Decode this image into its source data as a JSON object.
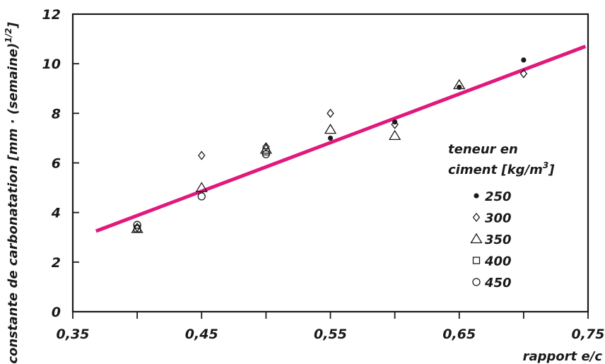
{
  "chart_data": {
    "type": "scatter",
    "xlabel": "rapport e/c",
    "ylabel_main": "constante de carbonatation [mm · (semaine)",
    "ylabel_sup": "1/2",
    "ylabel_end": "]",
    "xlim": [
      0.35,
      0.75
    ],
    "ylim": [
      0,
      12
    ],
    "x_ticks": [
      {
        "value": 0.35,
        "label": "0,35"
      },
      {
        "value": 0.45,
        "label": "0,45"
      },
      {
        "value": 0.55,
        "label": "0,55"
      },
      {
        "value": 0.65,
        "label": "0,65"
      },
      {
        "value": 0.75,
        "label": "0,75"
      }
    ],
    "x_minor_ticks": [
      0.4,
      0.5,
      0.6,
      0.7
    ],
    "y_ticks": [
      {
        "value": 0,
        "label": "0"
      },
      {
        "value": 2,
        "label": "2"
      },
      {
        "value": 4,
        "label": "4"
      },
      {
        "value": 6,
        "label": "6"
      },
      {
        "value": 8,
        "label": "8"
      },
      {
        "value": 10,
        "label": "10"
      },
      {
        "value": 12,
        "label": "12"
      }
    ],
    "grid": false,
    "legend": {
      "title_line1": "teneur en",
      "title_line2_main": "ciment [kg/m",
      "title_line2_sup": "3",
      "title_line2_end": "]",
      "placement": "right"
    },
    "series": [
      {
        "name": "250",
        "marker": "filled-circle",
        "points": [
          [
            0.55,
            7.0
          ],
          [
            0.6,
            7.65
          ],
          [
            0.65,
            9.05
          ],
          [
            0.7,
            10.15
          ]
        ]
      },
      {
        "name": "300",
        "marker": "diamond",
        "points": [
          [
            0.4,
            3.4
          ],
          [
            0.45,
            6.3
          ],
          [
            0.5,
            6.65
          ],
          [
            0.55,
            8.0
          ],
          [
            0.6,
            7.55
          ],
          [
            0.7,
            9.6
          ]
        ]
      },
      {
        "name": "350",
        "marker": "triangle",
        "points": [
          [
            0.4,
            3.35
          ],
          [
            0.45,
            5.0
          ],
          [
            0.5,
            6.55
          ],
          [
            0.55,
            7.35
          ],
          [
            0.6,
            7.1
          ],
          [
            0.65,
            9.15
          ]
        ]
      },
      {
        "name": "400",
        "marker": "square",
        "points": [
          [
            0.4,
            3.35
          ],
          [
            0.5,
            6.45
          ]
        ]
      },
      {
        "name": "450",
        "marker": "circle",
        "points": [
          [
            0.4,
            3.5
          ],
          [
            0.45,
            4.65
          ],
          [
            0.5,
            6.35
          ]
        ]
      }
    ],
    "trend_line": {
      "color": "#e0197d",
      "points": [
        [
          0.368,
          3.25
        ],
        [
          0.748,
          10.7
        ]
      ]
    }
  }
}
